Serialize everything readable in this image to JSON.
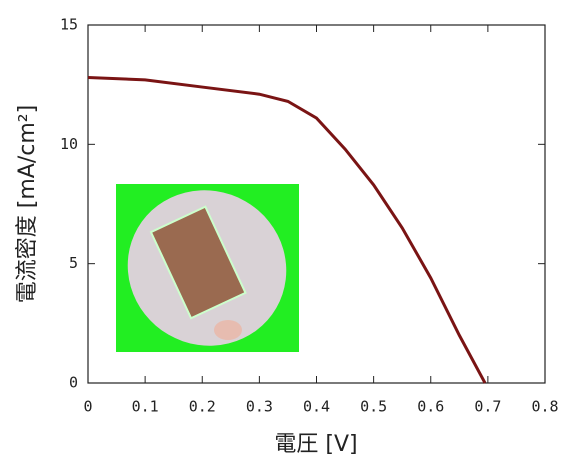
{
  "chart_data": {
    "type": "line",
    "x_label": "電圧 [V]",
    "y_label": "電流密度 [mA/cm²]",
    "x": [
      0,
      0.1,
      0.2,
      0.3,
      0.35,
      0.4,
      0.45,
      0.5,
      0.55,
      0.6,
      0.65,
      0.695
    ],
    "series": [
      {
        "color": "#7a1414",
        "values": [
          12.8,
          12.7,
          12.4,
          12.1,
          11.8,
          11.1,
          9.8,
          8.3,
          6.5,
          4.4,
          2.0,
          0
        ]
      }
    ],
    "xlim": [
      0,
      0.8
    ],
    "xticks": [
      0,
      0.1,
      0.2,
      0.3,
      0.4,
      0.5,
      0.6,
      0.7,
      0.8
    ],
    "ylim": [
      0,
      15
    ],
    "yticks": [
      0,
      5,
      10,
      15
    ]
  }
}
